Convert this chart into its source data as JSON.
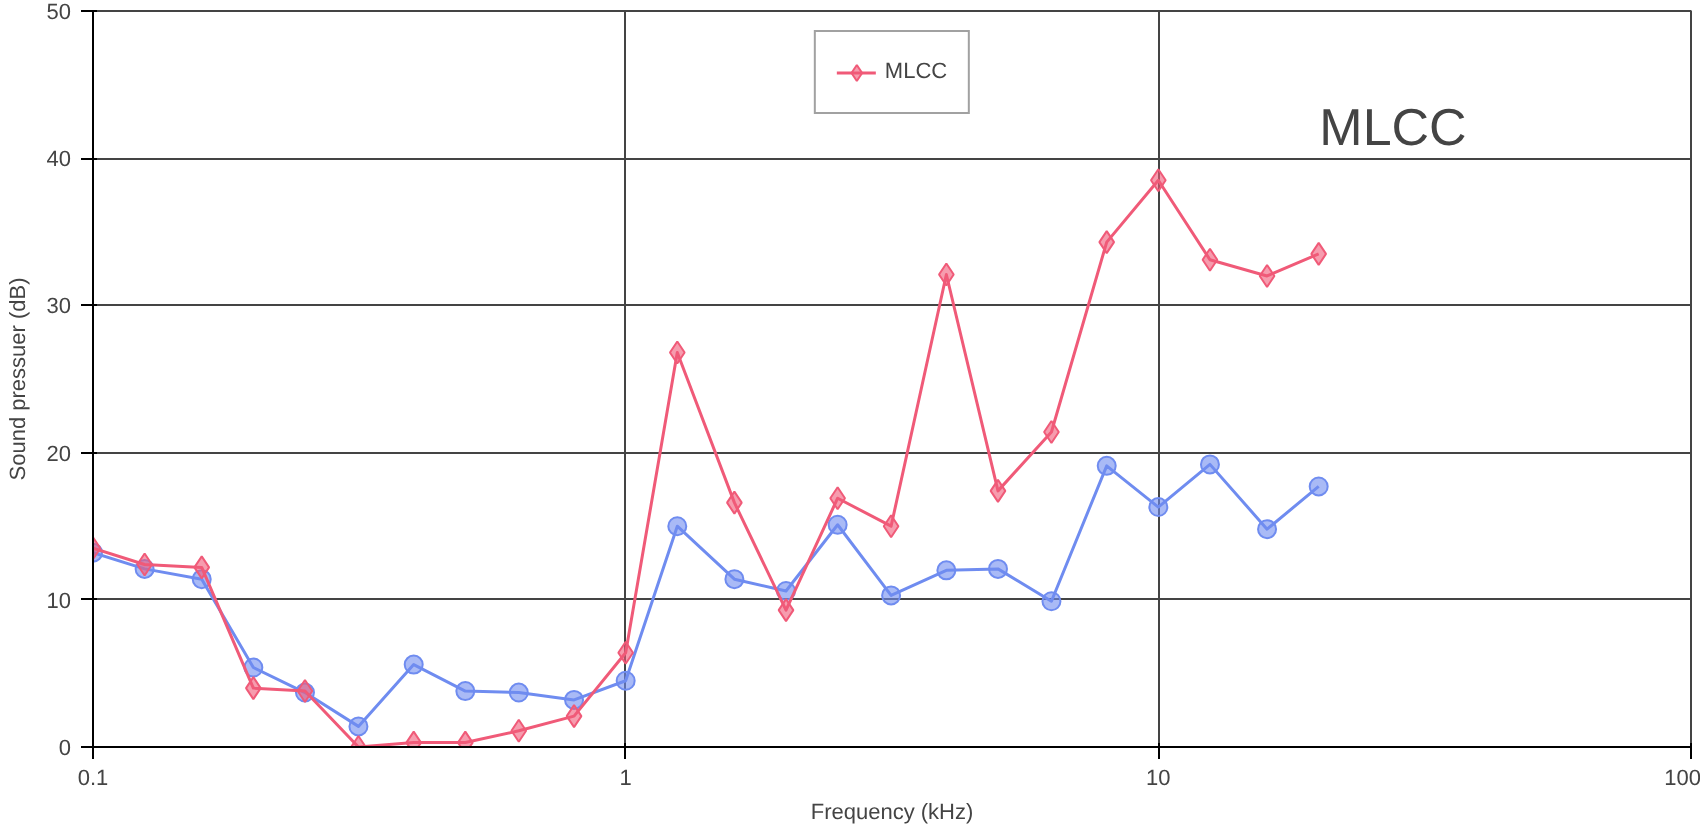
{
  "chart_data": {
    "type": "line",
    "xlabel": "Frequency (kHz)",
    "ylabel": "Sound pressuer (dB)",
    "x": [
      0.1,
      0.125,
      0.16,
      0.2,
      0.25,
      0.315,
      0.4,
      0.5,
      0.63,
      0.8,
      1,
      1.25,
      1.6,
      2,
      2.5,
      3.15,
      4,
      5,
      6.3,
      8,
      10,
      12.5,
      16,
      20
    ],
    "series": [
      {
        "color": "#6f8cf0",
        "marker": "circle",
        "values": [
          13.2,
          12.1,
          11.4,
          5.4,
          3.7,
          1.4,
          5.6,
          3.8,
          3.7,
          3.2,
          4.5,
          15.0,
          11.4,
          10.6,
          15.1,
          10.3,
          12.0,
          12.1,
          9.9,
          19.1,
          16.3,
          19.2,
          14.8,
          17.7
        ]
      },
      {
        "name": "MLCC",
        "color": "#f05a78",
        "marker": "diamond",
        "values": [
          13.5,
          12.4,
          12.2,
          4.0,
          3.8,
          0,
          0.3,
          0.3,
          1.1,
          2.1,
          6.4,
          26.8,
          16.6,
          9.3,
          16.9,
          15.0,
          32.1,
          17.4,
          21.4,
          34.3,
          38.5,
          33.1,
          32.0,
          33.5
        ]
      }
    ],
    "log": "x",
    "xlim": [
      0.1,
      100
    ],
    "xticks": [
      0.1,
      1,
      10,
      100
    ],
    "ylim": [
      0,
      50
    ],
    "yticks": [
      0,
      10,
      20,
      30,
      40,
      50
    ],
    "grid": true,
    "legend": "top",
    "annotations": [
      "MLCC"
    ]
  }
}
